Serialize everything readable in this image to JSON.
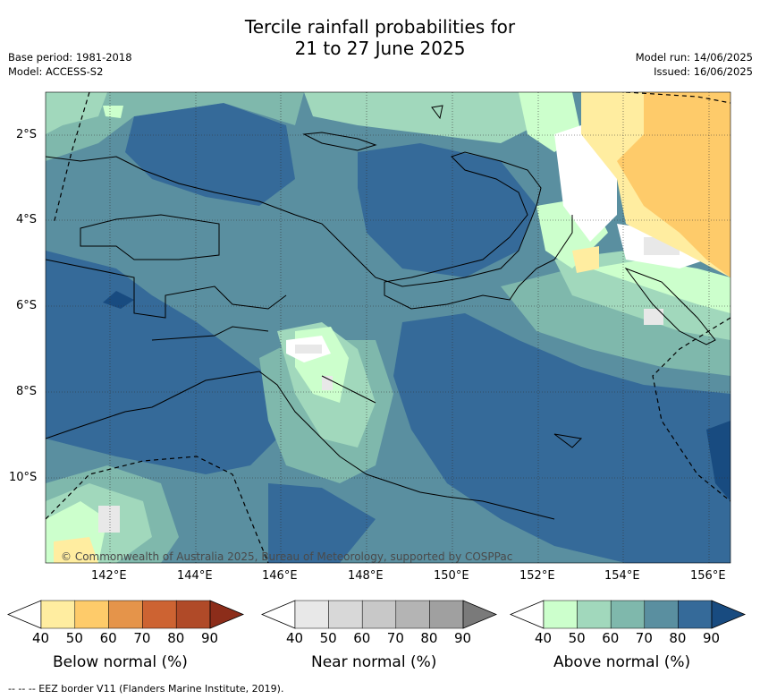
{
  "title_line1": "Tercile rainfall probabilities for",
  "title_line2": "21 to 27 June 2025",
  "base_period": "Base period: 1981-2018",
  "model": "Model: ACCESS-S2",
  "model_run": "Model run: 14/06/2025",
  "issued": "Issued: 16/06/2025",
  "copyright": "© Commonwealth of Australia 2025, Bureau of Meteorology, supported by COSPPac",
  "lat_labels": [
    "2°S",
    "4°S",
    "6°S",
    "8°S",
    "10°S"
  ],
  "lon_labels": [
    "142°E",
    "144°E",
    "146°E",
    "148°E",
    "150°E",
    "152°E",
    "154°E",
    "156°E"
  ],
  "colorbars": [
    {
      "title": "Below normal (%)",
      "ticks": [
        "40",
        "50",
        "60",
        "70",
        "80",
        "90"
      ],
      "colors": [
        "#ffffff",
        "#ffeda0",
        "#fecb6a",
        "#e5944a",
        "#cd6332",
        "#b04a28",
        "#8c2d1a"
      ]
    },
    {
      "title": "Near normal (%)",
      "ticks": [
        "40",
        "50",
        "60",
        "70",
        "80",
        "90"
      ],
      "colors": [
        "#ffffff",
        "#e8e8e8",
        "#d8d8d8",
        "#c8c8c8",
        "#b4b4b4",
        "#a0a0a0",
        "#7a7a7a"
      ]
    },
    {
      "title": "Above normal (%)",
      "ticks": [
        "40",
        "50",
        "60",
        "70",
        "80",
        "90"
      ],
      "colors": [
        "#ffffff",
        "#ccffcc",
        "#a1d8bc",
        "#7fb8ac",
        "#5a8fa0",
        "#356a99",
        "#184b80"
      ]
    }
  ],
  "footer": "--  --  -- EEZ border V11 (Flanders Marine Institute, 2019)."
}
